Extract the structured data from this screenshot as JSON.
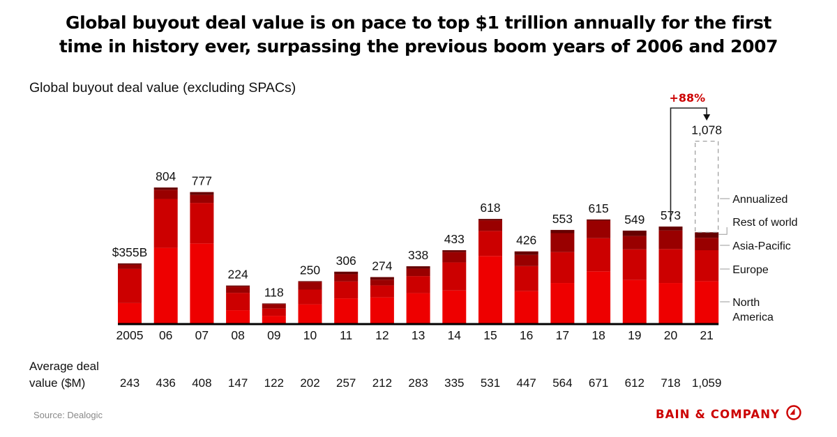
{
  "title_lines": [
    "Global buyout deal value is on pace to top $1 trillion annually for the first",
    "time in history ever, surpassing the previous boom years of 2006 and 2007"
  ],
  "subtitle": "Global buyout deal value (excluding SPACs)",
  "colors": {
    "north_america": "#ee0000",
    "europe": "#cc0000",
    "asia_pacific": "#990000",
    "rest_of_world": "#660000",
    "annualized_border": "#999999",
    "accent": "#cc0000"
  },
  "chart_data": {
    "type": "bar",
    "stacked": true,
    "title": "Global buyout deal value (excluding SPACs)",
    "unit": "$B",
    "ylim": [
      0,
      1100
    ],
    "grid": false,
    "categories": [
      "2005",
      "06",
      "07",
      "08",
      "09",
      "10",
      "11",
      "12",
      "13",
      "14",
      "15",
      "16",
      "17",
      "18",
      "19",
      "20",
      "21"
    ],
    "totals": [
      355,
      804,
      777,
      224,
      118,
      250,
      306,
      274,
      338,
      433,
      618,
      426,
      553,
      615,
      549,
      573,
      1078
    ],
    "total_labels": [
      "$355B",
      "804",
      "777",
      "224",
      "118",
      "250",
      "306",
      "274",
      "338",
      "433",
      "618",
      "426",
      "553",
      "615",
      "549",
      "573",
      "1,078"
    ],
    "series": [
      {
        "name": "North America",
        "key": "north_america",
        "values": [
          120,
          447,
          473,
          78,
          45,
          113,
          148,
          154,
          179,
          195,
          399,
          191,
          239,
          308,
          257,
          239,
          250
        ]
      },
      {
        "name": "Europe",
        "key": "europe",
        "values": [
          202,
          289,
          240,
          103,
          43,
          87,
          100,
          71,
          101,
          166,
          148,
          148,
          183,
          196,
          181,
          201,
          183
        ]
      },
      {
        "name": "Asia-Pacific",
        "key": "asia_pacific",
        "values": [
          25,
          55,
          47,
          37,
          26,
          46,
          43,
          34,
          44,
          61,
          63,
          66,
          112,
          104,
          79,
          110,
          73
        ]
      },
      {
        "name": "Rest of world",
        "key": "rest_of_world",
        "values": [
          8,
          13,
          17,
          6,
          4,
          4,
          15,
          15,
          14,
          11,
          8,
          21,
          19,
          7,
          32,
          23,
          33
        ]
      }
    ],
    "annualized": {
      "category": "21",
      "label": "Annualized",
      "total": 1078
    },
    "legend": [
      "Annualized",
      "Rest of world",
      "Asia-Pacific",
      "Europe",
      "North America"
    ],
    "legend_placement": "right",
    "annotation": {
      "text": "+88%",
      "from": "20",
      "to": "21"
    },
    "avg_deal_value": {
      "label_lines": [
        "Average deal",
        "value ($M)"
      ],
      "values": [
        "243",
        "436",
        "408",
        "147",
        "122",
        "202",
        "257",
        "212",
        "283",
        "335",
        "531",
        "447",
        "564",
        "671",
        "612",
        "718",
        "1,059"
      ]
    }
  },
  "source": "Source: Dealogic",
  "logo": "BAIN & COMPANY"
}
